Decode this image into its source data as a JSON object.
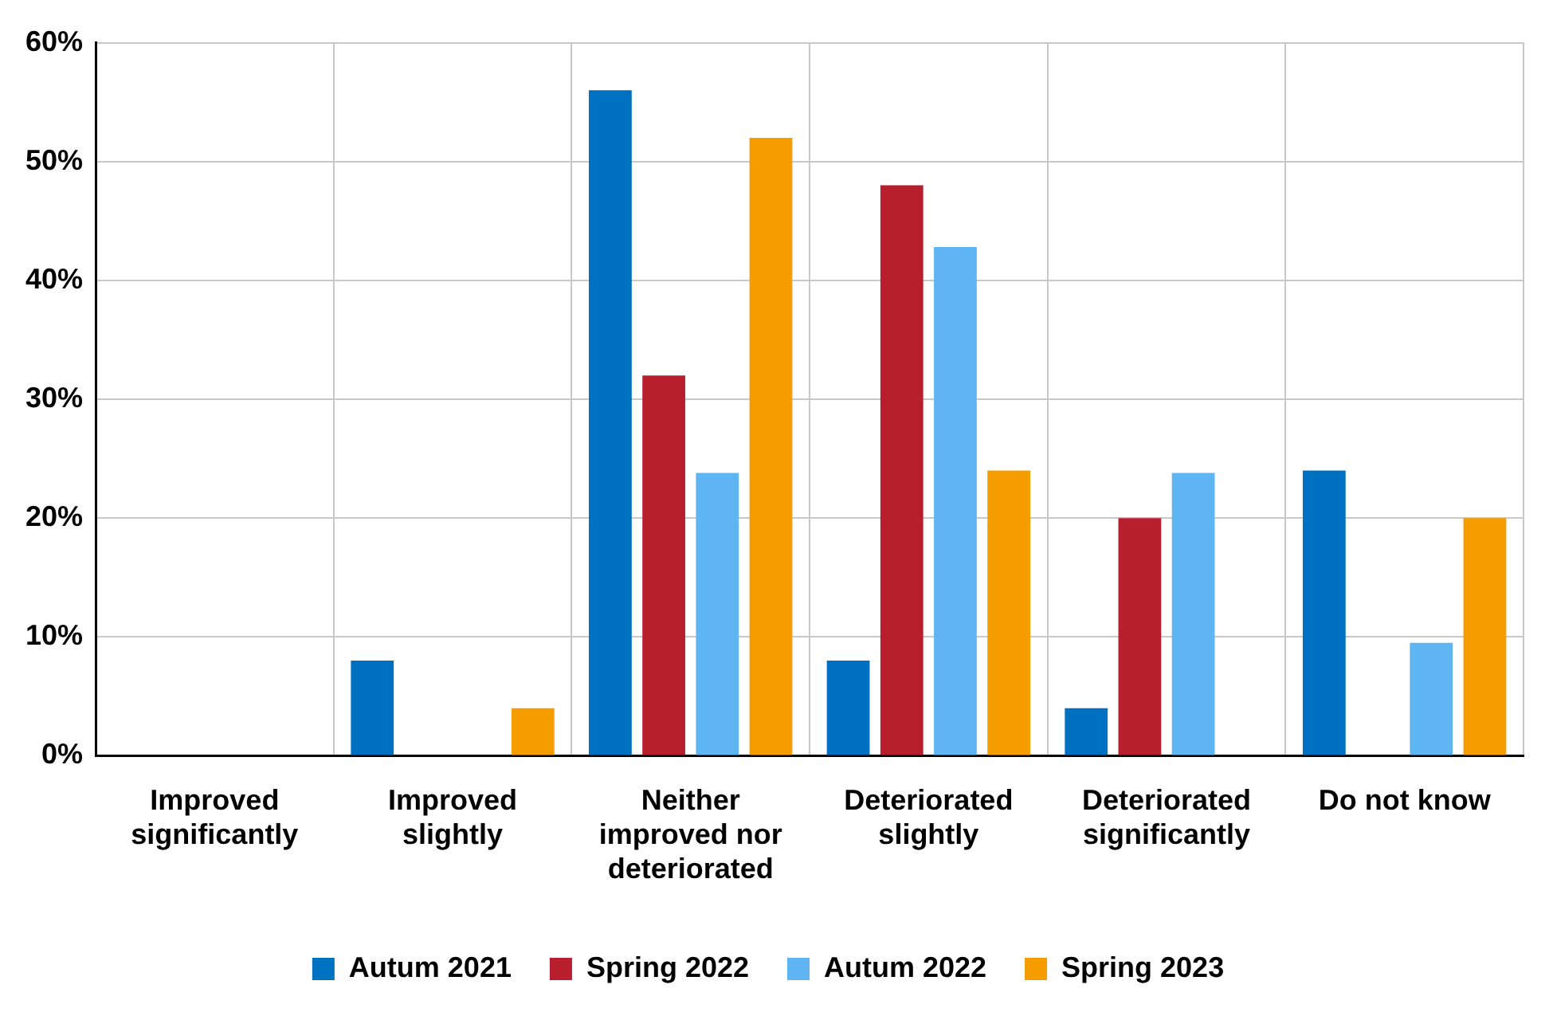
{
  "chart_data": {
    "type": "bar",
    "categories": [
      "Improved significantly",
      "Improved slightly",
      "Neither improved nor deteriorated",
      "Deteriorated slightly",
      "Deteriorated significantly",
      "Do not know"
    ],
    "series": [
      {
        "name": "Autum 2021",
        "color": "#0070c0",
        "values": [
          0,
          8,
          56,
          8,
          4,
          24
        ]
      },
      {
        "name": "Spring 2022",
        "color": "#b81f2d",
        "values": [
          0,
          0,
          32,
          48,
          20,
          0
        ]
      },
      {
        "name": "Autum 2022",
        "color": "#5fb4f2",
        "values": [
          0,
          0,
          23.8,
          42.8,
          23.8,
          9.5
        ]
      },
      {
        "name": "Spring 2023",
        "color": "#f59c00",
        "values": [
          0,
          4,
          52,
          24,
          0,
          20
        ]
      }
    ],
    "ylim": [
      0,
      60
    ],
    "yticks": [
      {
        "value": 0,
        "label": "0%"
      },
      {
        "value": 10,
        "label": "10%"
      },
      {
        "value": 20,
        "label": "20%"
      },
      {
        "value": 30,
        "label": "30%"
      },
      {
        "value": 40,
        "label": "40%"
      },
      {
        "value": 50,
        "label": "50%"
      },
      {
        "value": 60,
        "label": "60%"
      }
    ],
    "grid": true,
    "legend": "bottom"
  }
}
